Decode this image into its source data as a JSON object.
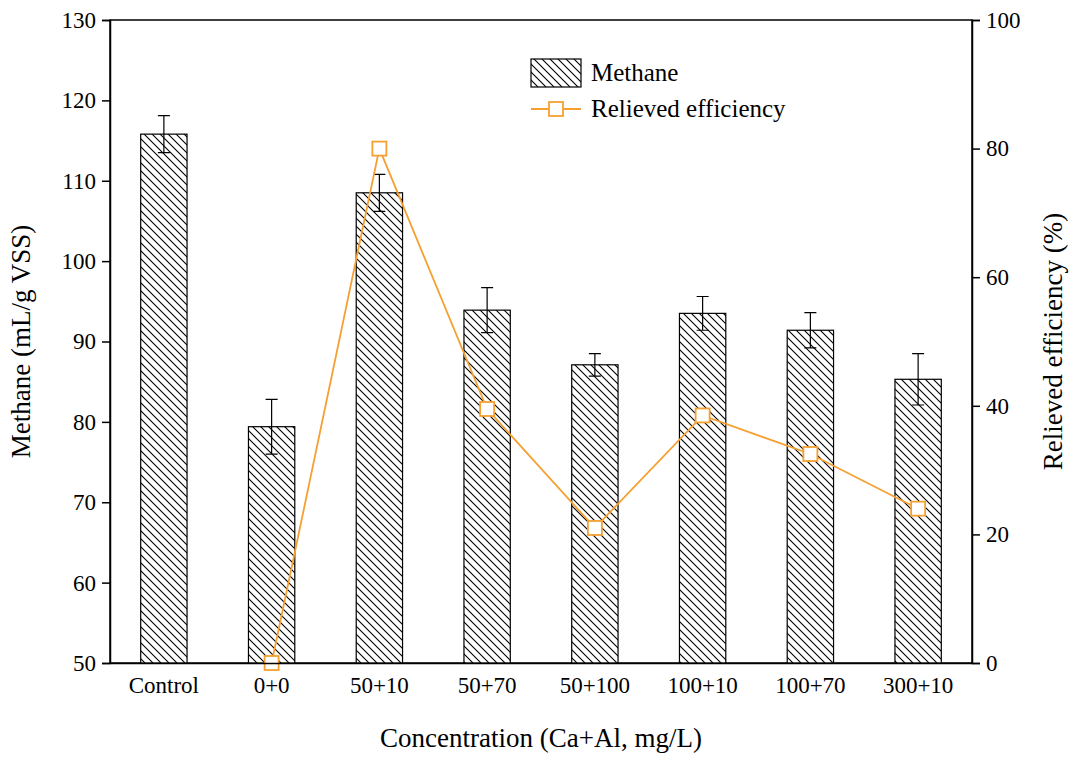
{
  "chart_data": {
    "type": "bar",
    "x_label": "Concentration (Ca+Al, mg/L)",
    "y_label": "Methane (mL/g VSS)",
    "y2_label": "Relieved efficiency (%)",
    "categories": [
      "Control",
      "0+0",
      "50+10",
      "50+70",
      "50+100",
      "100+10",
      "100+70",
      "300+10"
    ],
    "ylim": [
      50,
      130
    ],
    "yticks": [
      50,
      60,
      70,
      80,
      90,
      100,
      110,
      120,
      130
    ],
    "y2lim": [
      0,
      100
    ],
    "y2ticks": [
      0,
      20,
      40,
      60,
      80,
      100
    ],
    "legend": "upper center",
    "series": [
      {
        "name": "Methane",
        "type": "bar",
        "color": "#000000",
        "values": [
          115.8,
          79.4,
          108.5,
          93.9,
          87.1,
          93.5,
          91.4,
          85.3
        ],
        "errors": [
          2.3,
          3.4,
          2.3,
          2.8,
          1.4,
          2.1,
          2.2,
          3.2
        ]
      },
      {
        "name": "Relieved efficiency",
        "type": "line",
        "color": "#f5a031",
        "marker": "square",
        "axis": "y2",
        "values": [
          null,
          0,
          80,
          39.5,
          21,
          38.5,
          32.5,
          24
        ]
      }
    ]
  }
}
